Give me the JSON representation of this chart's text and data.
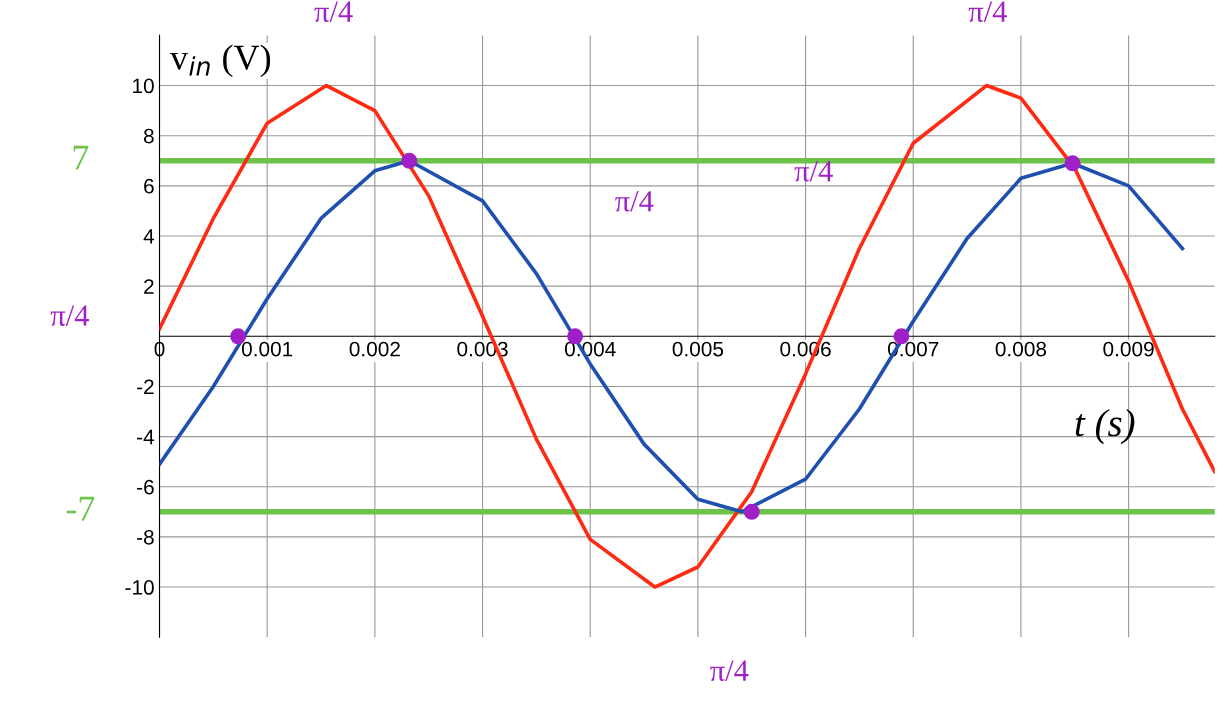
{
  "chart_data": {
    "type": "line",
    "xlabel": "t (s)",
    "ylabel": "v$_{in}$ (V)",
    "xlim": [
      0,
      0.0098
    ],
    "ylim": [
      -12,
      12
    ],
    "xticks": [
      {
        "value": 0,
        "label": "0"
      },
      0.001,
      0.002,
      0.003,
      0.004,
      0.005,
      0.006,
      0.007,
      0.008,
      0.009
    ],
    "yticks": [
      -10,
      -8,
      -6,
      -4,
      -2,
      2,
      4,
      6,
      8,
      10
    ],
    "grid": true,
    "marker": "none",
    "line_style": "solid",
    "series": [
      {
        "color": "#ff2a12",
        "x": [
          0,
          0.0005,
          0.001,
          0.00155,
          0.002,
          0.0025,
          0.003,
          0.0035,
          0.004,
          0.0046,
          0.005,
          0.0055,
          0.006,
          0.0065,
          0.007,
          0.00768,
          0.008,
          0.0085,
          0.009,
          0.0095,
          0.0098
        ],
        "values": [
          0.3,
          4.7,
          8.5,
          10,
          9.0,
          5.6,
          0.8,
          -4.1,
          -8.1,
          -10,
          -9.2,
          -6.2,
          -1.5,
          3.5,
          7.7,
          10,
          9.5,
          6.7,
          2.2,
          -2.9,
          -5.4
        ]
      },
      {
        "color": "#1f4fb0",
        "x": [
          0,
          0.0005,
          0.001,
          0.0015,
          0.002,
          0.00232,
          0.003,
          0.0035,
          0.004,
          0.0045,
          0.005,
          0.00541,
          0.006,
          0.0065,
          0.007,
          0.0075,
          0.008,
          0.00848,
          0.009,
          0.0095
        ],
        "values": [
          -5.1,
          -2.0,
          1.5,
          4.7,
          6.6,
          7,
          5.4,
          2.5,
          -1.1,
          -4.3,
          -6.5,
          -7,
          -5.7,
          -2.9,
          0.6,
          3.9,
          6.3,
          6.9,
          6.0,
          3.5
        ]
      },
      {
        "type": "scatter",
        "marker": "circle",
        "color": "#a020c8",
        "x": [
          0.00073,
          0.00232,
          0.00386,
          0.0055,
          0.00689,
          0.00848
        ],
        "values": [
          0,
          7,
          0,
          -7,
          0,
          6.9
        ]
      }
    ],
    "ref_lines": [
      {
        "axis": "y",
        "value": 7,
        "label": "7",
        "color": "#6cc24a"
      },
      {
        "axis": "y",
        "value": -7,
        "label": "-7",
        "color": "#6cc24a"
      }
    ],
    "annotations": [
      "π/4",
      "π/4",
      "π/4",
      "π/4",
      "π/4",
      "π/4"
    ]
  }
}
